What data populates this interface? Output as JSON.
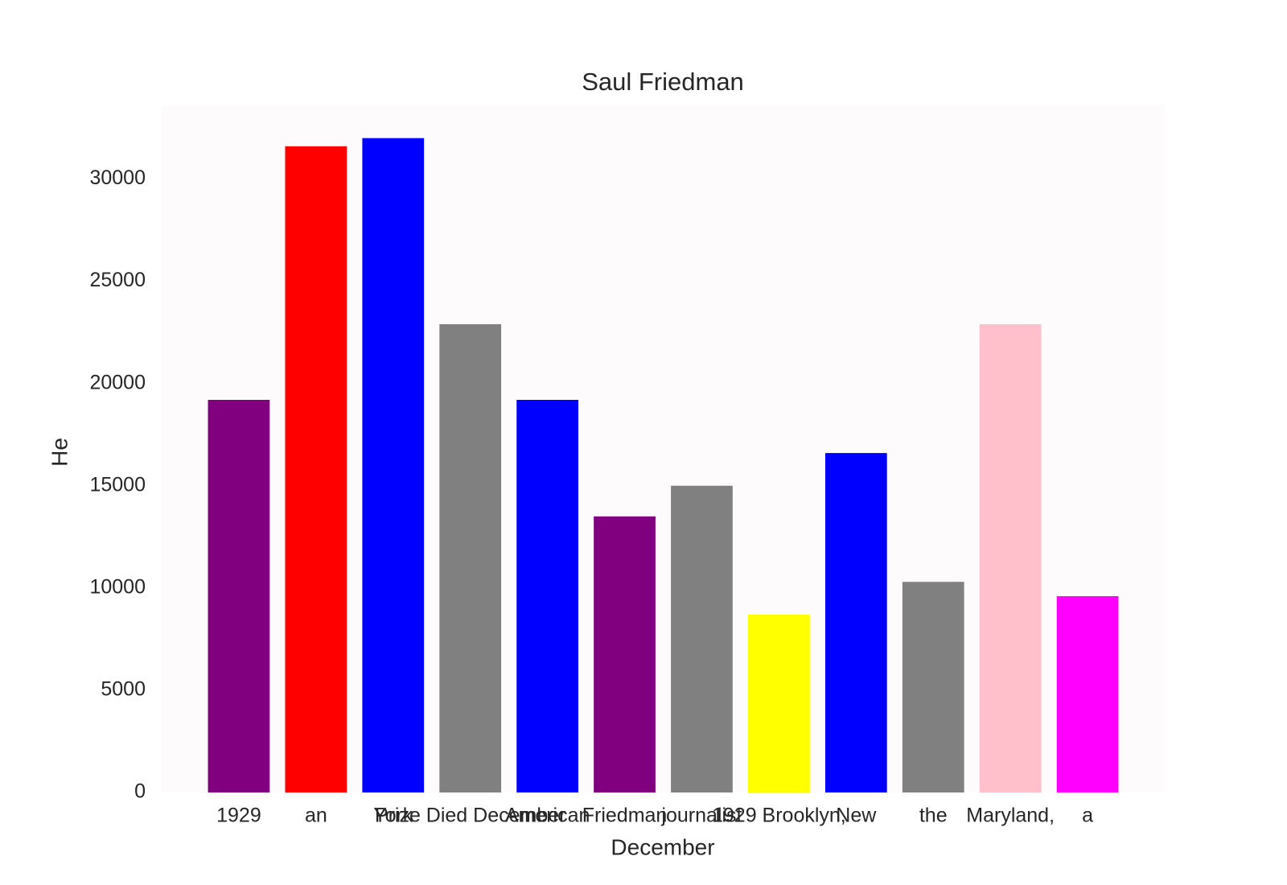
{
  "chart_data": {
    "type": "bar",
    "title": "Saul Friedman",
    "x_label": "December",
    "y_label": "He",
    "categories": [
      "1929",
      "an",
      "York",
      "Prize Died December",
      "American",
      "Friedman",
      "journalist",
      "1929 Brooklyn,",
      "New",
      "the",
      "Maryland,",
      "a"
    ],
    "values": [
      19200,
      31600,
      32000,
      22900,
      19200,
      13500,
      15000,
      8700,
      16600,
      10300,
      22900,
      9600
    ],
    "colors": [
      "#800080",
      "#ff0000",
      "#0000ff",
      "#808080",
      "#0000ff",
      "#800080",
      "#808080",
      "#ffff00",
      "#0000ff",
      "#808080",
      "#ffc0cb",
      "#ff00ff"
    ],
    "ylim": [
      0,
      33600
    ],
    "yticks": [
      0,
      5000,
      10000,
      15000,
      20000,
      25000,
      30000
    ],
    "grid": false
  }
}
